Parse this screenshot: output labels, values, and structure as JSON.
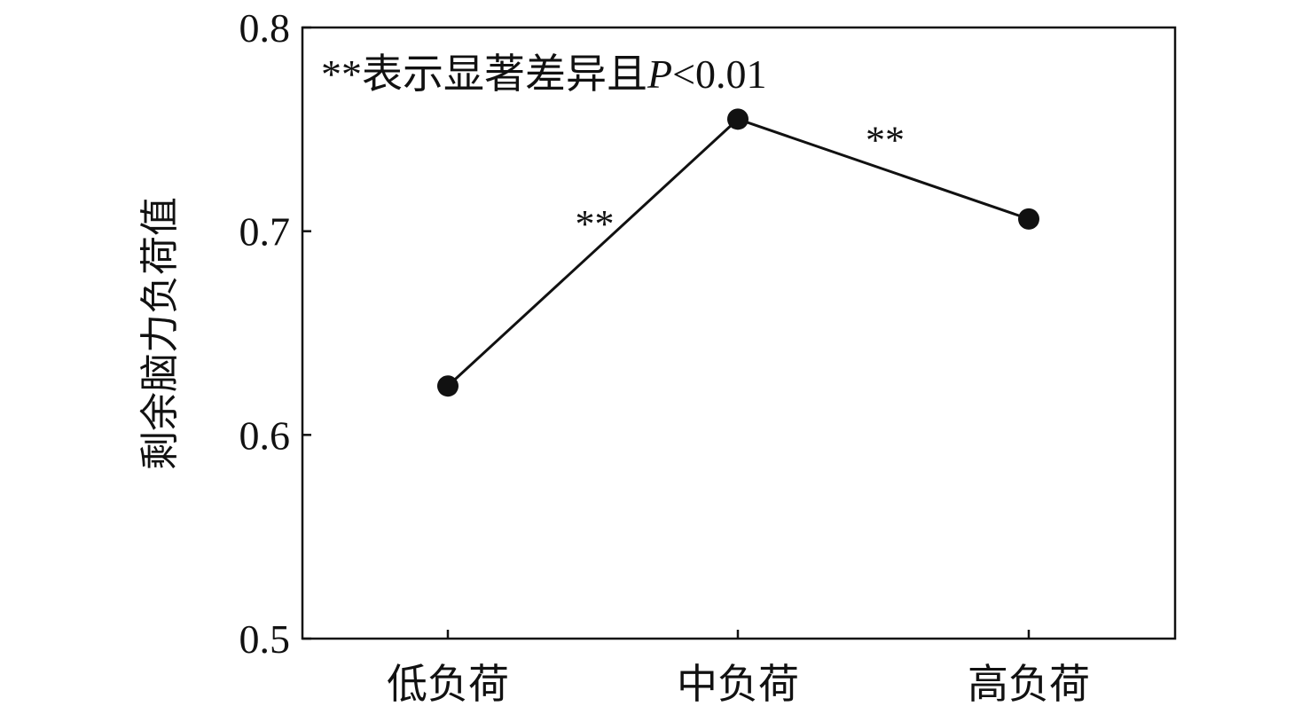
{
  "chart_data": {
    "type": "line",
    "categories": [
      "低负荷",
      "中负荷",
      "高负荷"
    ],
    "series": [
      {
        "values": [
          0.624,
          0.755,
          0.706
        ]
      }
    ],
    "title": "",
    "xlabel": "",
    "ylabel": "剩余脑力负荷值",
    "ylim": [
      0.5,
      0.8
    ],
    "yticks": [
      0.5,
      0.6,
      0.7,
      0.8
    ],
    "ytick_labels": [
      "0.5",
      "0.6",
      "0.7",
      "0.8"
    ],
    "grid": false,
    "annotation": {
      "prefix": "**表示显著差异且",
      "italic": "P",
      "suffix": "<0.01"
    },
    "significance_marks": [
      {
        "between": [
          0,
          1
        ],
        "label": "**"
      },
      {
        "between": [
          1,
          2
        ],
        "label": "**"
      }
    ]
  }
}
